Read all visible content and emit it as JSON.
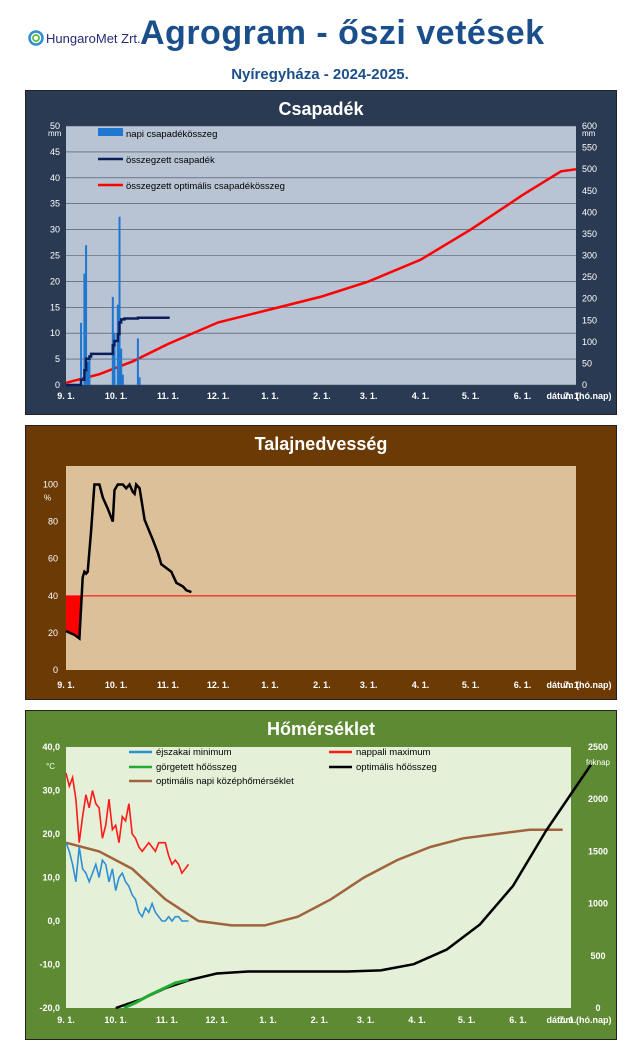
{
  "header": {
    "logo_text": "HungaroMet Zrt.",
    "title": "Agrogram - őszi vetések",
    "subtitle": "Nyíregyháza  - 2024-2025."
  },
  "x_axis": {
    "tick_labels": [
      "9. 1.",
      "10. 1.",
      "11. 1.",
      "12. 1.",
      "1. 1.",
      "2. 1.",
      "3. 1.",
      "4. 1.",
      "5. 1.",
      "6. 1.",
      "7. 1."
    ],
    "label": "dátum (hó.nap)"
  },
  "chart_data": [
    {
      "type": "bar",
      "title": "Csapadék",
      "ylabel_left": "mm",
      "ylabel_right": "mm",
      "ylim": [
        0,
        50
      ],
      "ylim_right": [
        0,
        600
      ],
      "yticks_left": [
        0,
        5,
        10,
        15,
        20,
        25,
        30,
        35,
        40,
        45,
        50
      ],
      "yticks_right": [
        0,
        50,
        100,
        150,
        200,
        250,
        300,
        350,
        400,
        450,
        500,
        550,
        600
      ],
      "xlim_days": [
        0,
        305
      ],
      "legend_position": "top-left",
      "grid": true,
      "colors": {
        "napi": "#1f77d0",
        "osszegzett": "#0b1e5b",
        "optimalis": "#ff0000"
      },
      "series": [
        {
          "name": "napi csapadékösszeg",
          "kind": "bar",
          "axis": "left",
          "points": [
            [
              9,
              12
            ],
            [
              11,
              21.5
            ],
            [
              12,
              27
            ],
            [
              13,
              4.5
            ],
            [
              14,
              5.5
            ],
            [
              28,
              17
            ],
            [
              29,
              10
            ],
            [
              31,
              15.5
            ],
            [
              32,
              32.5
            ],
            [
              33,
              7
            ],
            [
              34,
              2
            ],
            [
              43,
              9
            ],
            [
              44,
              1.5
            ]
          ]
        },
        {
          "name": "összegzett csapadék",
          "kind": "line",
          "axis": "right",
          "points": [
            [
              0,
              0
            ],
            [
              8,
              0
            ],
            [
              9,
              12
            ],
            [
              10,
              12
            ],
            [
              11,
              34
            ],
            [
              12,
              61
            ],
            [
              14,
              66
            ],
            [
              15,
              72
            ],
            [
              26,
              72
            ],
            [
              28,
              92
            ],
            [
              29,
              102
            ],
            [
              31,
              118
            ],
            [
              32,
              145
            ],
            [
              33,
              152
            ],
            [
              35,
              154
            ],
            [
              40,
              154
            ],
            [
              43,
              156
            ],
            [
              44,
              156
            ],
            [
              62,
              156
            ]
          ]
        },
        {
          "name": "összegzett optimális csapadékösszeg",
          "kind": "line",
          "axis": "right",
          "points": [
            [
              0,
              5
            ],
            [
              20,
              25
            ],
            [
              40,
              55
            ],
            [
              61,
              95
            ],
            [
              91,
              145
            ],
            [
              122,
              175
            ],
            [
              153,
              205
            ],
            [
              181,
              240
            ],
            [
              212,
              290
            ],
            [
              242,
              360
            ],
            [
              273,
              440
            ],
            [
              296,
              495
            ],
            [
              305,
              500
            ]
          ]
        }
      ]
    },
    {
      "type": "line",
      "title": "Talajnedvesség",
      "ylabel": "%",
      "ylim": [
        0,
        110
      ],
      "yticks": [
        0,
        20,
        40,
        60,
        80,
        100
      ],
      "xlim_days": [
        0,
        305
      ],
      "threshold": 40,
      "grid": false,
      "colors": {
        "line": "#000000",
        "threshold": "#ff0000",
        "below_fill": "#ff0000",
        "background": "#dcc09a"
      },
      "series": [
        {
          "name": "talajnedvesség",
          "points": [
            [
              0,
              21
            ],
            [
              5,
              19
            ],
            [
              8,
              17
            ],
            [
              10,
              50
            ],
            [
              11,
              53
            ],
            [
              12,
              52
            ],
            [
              13,
              53
            ],
            [
              15,
              75
            ],
            [
              17,
              100
            ],
            [
              20,
              100
            ],
            [
              22,
              93
            ],
            [
              25,
              87
            ],
            [
              28,
              80
            ],
            [
              29,
              97
            ],
            [
              31,
              100
            ],
            [
              34,
              100
            ],
            [
              36,
              98
            ],
            [
              38,
              100
            ],
            [
              40,
              96
            ],
            [
              41,
              95
            ],
            [
              42,
              100
            ],
            [
              44,
              98
            ],
            [
              47,
              81
            ],
            [
              52,
              70
            ],
            [
              55,
              63
            ],
            [
              57,
              57
            ],
            [
              60,
              55
            ],
            [
              63,
              53
            ],
            [
              66,
              47
            ],
            [
              70,
              45
            ],
            [
              72,
              43
            ],
            [
              75,
              42
            ]
          ]
        }
      ]
    },
    {
      "type": "line",
      "title": "Hőmérséklet",
      "ylabel_left": "°C",
      "ylabel_right": "foknap",
      "ylim": [
        -20,
        40
      ],
      "ylim_right": [
        0,
        2500
      ],
      "yticks_left": [
        "-20,0",
        "-10,0",
        "0,0",
        "10,0",
        "20,0",
        "30,0",
        "40,0"
      ],
      "yticks_right": [
        0,
        500,
        1000,
        1500,
        2000,
        2500
      ],
      "xlim_days": [
        0,
        305
      ],
      "grid": false,
      "legend_position": "top",
      "colors": {
        "ejszakai": "#2e8fd6",
        "nappali": "#ff1a1a",
        "gorgetett": "#22aa33",
        "optimalis_hoosszeg": "#000000",
        "optimalis_kozep": "#a0643c",
        "background": "#e4f0d8"
      },
      "series": [
        {
          "name": "éjszakai minimum",
          "axis": "left",
          "points": [
            [
              0,
              18
            ],
            [
              2,
              16
            ],
            [
              4,
              13
            ],
            [
              6,
              9
            ],
            [
              8,
              17
            ],
            [
              10,
              12
            ],
            [
              12,
              11
            ],
            [
              14,
              9
            ],
            [
              16,
              11
            ],
            [
              18,
              13
            ],
            [
              20,
              10
            ],
            [
              22,
              14
            ],
            [
              24,
              13
            ],
            [
              26,
              9
            ],
            [
              28,
              12
            ],
            [
              30,
              7
            ],
            [
              32,
              10
            ],
            [
              34,
              11
            ],
            [
              36,
              9
            ],
            [
              38,
              8
            ],
            [
              40,
              6
            ],
            [
              42,
              5
            ],
            [
              44,
              2
            ],
            [
              46,
              1
            ],
            [
              48,
              3
            ],
            [
              50,
              2
            ],
            [
              52,
              4
            ],
            [
              54,
              2
            ],
            [
              56,
              1
            ],
            [
              58,
              0
            ],
            [
              60,
              0
            ],
            [
              62,
              1
            ],
            [
              64,
              0
            ],
            [
              66,
              1
            ],
            [
              68,
              1
            ],
            [
              70,
              0
            ],
            [
              72,
              0
            ],
            [
              74,
              0
            ]
          ]
        },
        {
          "name": "nappali maximum",
          "axis": "left",
          "points": [
            [
              0,
              34
            ],
            [
              2,
              31
            ],
            [
              4,
              33
            ],
            [
              6,
              28
            ],
            [
              8,
              18
            ],
            [
              10,
              24
            ],
            [
              12,
              29
            ],
            [
              14,
              26
            ],
            [
              16,
              30
            ],
            [
              18,
              27
            ],
            [
              20,
              26
            ],
            [
              22,
              19
            ],
            [
              24,
              22
            ],
            [
              26,
              28
            ],
            [
              28,
              21
            ],
            [
              30,
              22
            ],
            [
              32,
              18
            ],
            [
              34,
              24
            ],
            [
              36,
              23
            ],
            [
              38,
              27
            ],
            [
              40,
              20
            ],
            [
              42,
              19
            ],
            [
              44,
              17
            ],
            [
              46,
              16
            ],
            [
              48,
              17
            ],
            [
              50,
              18
            ],
            [
              52,
              17
            ],
            [
              54,
              16
            ],
            [
              56,
              18
            ],
            [
              58,
              18
            ],
            [
              60,
              18
            ],
            [
              62,
              15
            ],
            [
              64,
              13
            ],
            [
              66,
              14
            ],
            [
              68,
              13
            ],
            [
              70,
              11
            ],
            [
              72,
              12
            ],
            [
              74,
              13
            ]
          ]
        },
        {
          "name": "görgetett hőösszeg",
          "axis": "right",
          "points": [
            [
              35,
              0
            ],
            [
              42,
              50
            ],
            [
              50,
              120
            ],
            [
              58,
              180
            ],
            [
              66,
              240
            ],
            [
              74,
              270
            ]
          ]
        },
        {
          "name": "optimális hőösszeg",
          "axis": "right",
          "points": [
            [
              30,
              0
            ],
            [
              45,
              80
            ],
            [
              60,
              190
            ],
            [
              75,
              270
            ],
            [
              91,
              330
            ],
            [
              110,
              350
            ],
            [
              140,
              350
            ],
            [
              170,
              350
            ],
            [
              190,
              360
            ],
            [
              210,
              420
            ],
            [
              230,
              560
            ],
            [
              250,
              800
            ],
            [
              270,
              1170
            ],
            [
              290,
              1700
            ],
            [
              305,
              2050
            ],
            [
              320,
              2330
            ]
          ]
        },
        {
          "name": "optimális napi középhőmérséklet",
          "axis": "left",
          "points": [
            [
              0,
              18
            ],
            [
              20,
              16
            ],
            [
              40,
              12
            ],
            [
              60,
              5
            ],
            [
              80,
              0
            ],
            [
              100,
              -1
            ],
            [
              120,
              -1
            ],
            [
              140,
              1
            ],
            [
              160,
              5
            ],
            [
              180,
              10
            ],
            [
              200,
              14
            ],
            [
              220,
              17
            ],
            [
              240,
              19
            ],
            [
              260,
              20
            ],
            [
              280,
              21
            ],
            [
              300,
              21
            ]
          ]
        }
      ]
    }
  ]
}
